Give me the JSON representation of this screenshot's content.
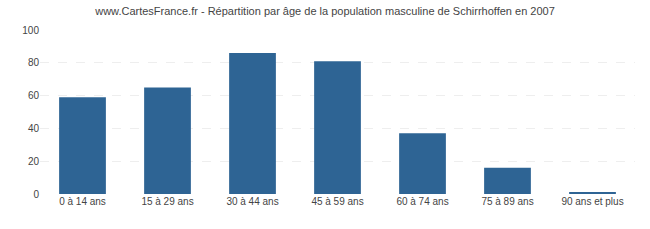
{
  "chart_data": {
    "type": "bar",
    "title": "www.CartesFrance.fr - Répartition par âge de la population masculine de Schirrhoffen en 2007",
    "categories": [
      "0 à 14 ans",
      "15 à 29 ans",
      "30 à 44 ans",
      "45 à 59 ans",
      "60 à 74 ans",
      "75 à 89 ans",
      "90 ans et plus"
    ],
    "values": [
      59,
      65,
      86,
      81,
      37,
      16,
      1
    ],
    "color": "#2e6494",
    "ylim": [
      0,
      100
    ],
    "yticks": [
      0,
      20,
      40,
      60,
      80,
      100
    ],
    "grid": true
  }
}
